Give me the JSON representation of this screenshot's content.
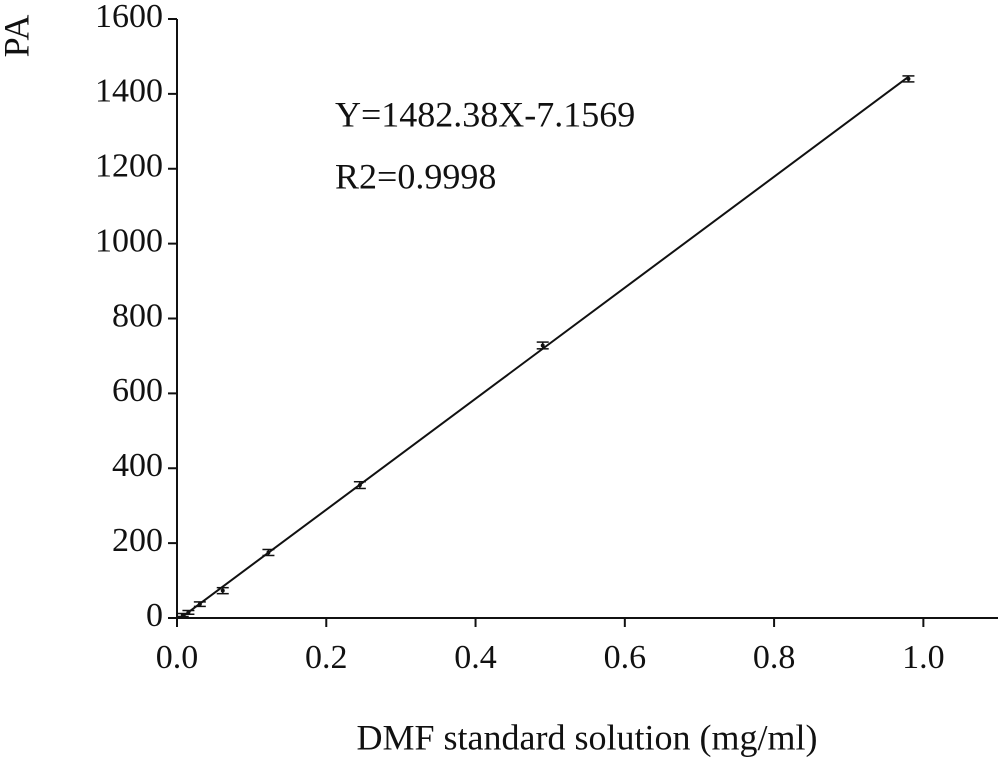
{
  "chart_data": {
    "type": "scatter",
    "x_label": "DMF standard solution (mg/ml)",
    "y_label": "PA",
    "annotations": [
      "Y=1482.38X-7.1569",
      "R2=0.9998"
    ],
    "xlim": [
      0,
      1.1
    ],
    "xticks": [
      {
        "value": 0,
        "label": "0.0"
      },
      0.2,
      0.4,
      0.6,
      0.8,
      {
        "value": 1,
        "label": "1.0"
      }
    ],
    "ylim": [
      0,
      1600
    ],
    "yticks": [
      0,
      200,
      400,
      600,
      800,
      1000,
      1200,
      1400,
      1600
    ],
    "series": [
      {
        "color": "#111111",
        "x": [
          0.0077,
          0.0153,
          0.0306,
          0.0613,
          0.1225,
          0.245,
          0.49,
          0.98
        ],
        "values": [
          8,
          15,
          37,
          73,
          175,
          355,
          728,
          1440
        ],
        "errors": [
          4,
          5,
          6,
          8,
          8,
          9,
          9,
          8
        ]
      }
    ],
    "fit": {
      "slope": 1482.38,
      "intercept": -7.1569,
      "color": "#111111"
    }
  }
}
